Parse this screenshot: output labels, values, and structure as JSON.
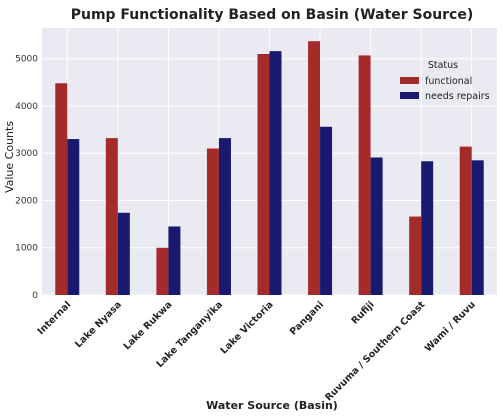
{
  "chart_data": {
    "type": "bar",
    "title": "Pump Functionality Based on Basin (Water Source)",
    "xlabel": "Water Source (Basin)",
    "ylabel": "Value Counts",
    "ylim": [
      0,
      5650
    ],
    "yticks": [
      0,
      1000,
      2000,
      3000,
      4000,
      5000
    ],
    "grid": true,
    "legend_title": "Status",
    "legend_position": "upper-right",
    "categories": [
      "Internal",
      "Lake Nyasa",
      "Lake Rukwa",
      "Lake Tanganyika",
      "Lake Victoria",
      "Pangani",
      "Rufiji",
      "Ruvuma / Southern Coast",
      "Wami / Ruvu"
    ],
    "series": [
      {
        "name": "functional",
        "color": "#a52a2a",
        "values": [
          4480,
          3320,
          1000,
          3100,
          5100,
          5370,
          5070,
          1660,
          3140
        ]
      },
      {
        "name": "needs repairs",
        "color": "#191970",
        "values": [
          3300,
          1740,
          1450,
          3320,
          5160,
          3560,
          2910,
          2830,
          2850
        ]
      }
    ]
  }
}
